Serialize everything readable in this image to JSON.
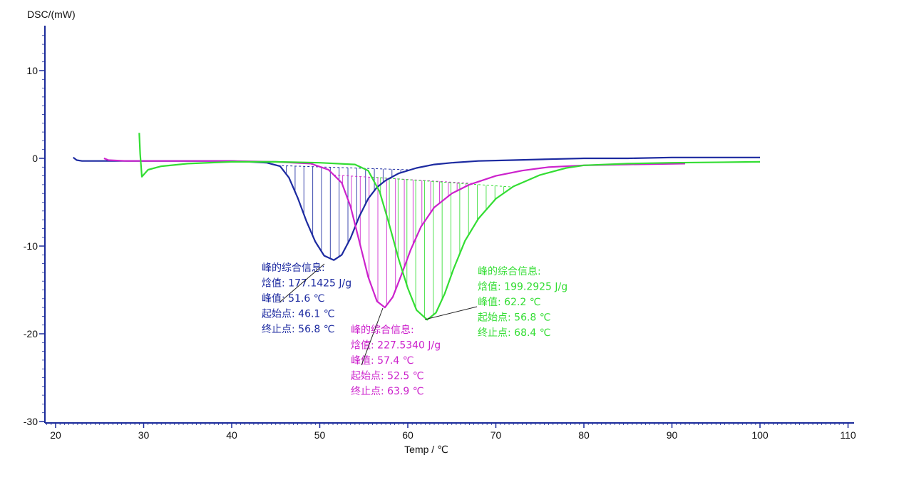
{
  "chart_data": {
    "type": "line",
    "ylabel": "DSC/(mW)",
    "xlabel": "Temp / ℃",
    "xlim": [
      19,
      110
    ],
    "ylim": [
      -30,
      15
    ],
    "xticks": [
      20,
      30,
      40,
      50,
      60,
      70,
      80,
      90,
      100,
      110
    ],
    "yticks": [
      10,
      0,
      -10,
      -20,
      -30
    ],
    "grid": false,
    "series": [
      {
        "color": "#1c2aa0",
        "x": [
          22,
          22.4,
          23,
          25,
          30,
          35,
          40,
          44,
          45.5,
          46.5,
          47.5,
          48.5,
          49.5,
          50.5,
          51.6,
          52.5,
          53.5,
          54.5,
          55.5,
          56.5,
          57.5,
          59,
          61,
          63,
          65,
          68,
          72,
          76,
          80,
          85,
          90,
          95,
          100
        ],
        "y": [
          0.1,
          -0.2,
          -0.3,
          -0.3,
          -0.3,
          -0.3,
          -0.3,
          -0.5,
          -0.9,
          -2.2,
          -4.5,
          -7.2,
          -9.5,
          -11.1,
          -11.6,
          -11.0,
          -9.1,
          -6.6,
          -4.6,
          -3.3,
          -2.5,
          -1.7,
          -1.1,
          -0.7,
          -0.5,
          -0.3,
          -0.2,
          -0.1,
          0.0,
          0.0,
          0.1,
          0.1,
          0.1
        ],
        "peak_info": {
          "title": "峰的综合信息:",
          "enthalpy_label": "焓值:",
          "enthalpy": "177.1425 J/g",
          "peak_label": "峰值:",
          "peak": "51.6 ℃",
          "onset_label": "起始点:",
          "onset": "46.1 ℃",
          "end_label": "终止点:",
          "end": "56.8 ℃"
        }
      },
      {
        "color": "#cc22cc",
        "x": [
          25.5,
          26,
          28,
          30,
          35,
          40,
          45,
          49,
          51,
          52.5,
          53.5,
          54.5,
          55.5,
          56.5,
          57.4,
          58.3,
          59.3,
          60.3,
          61.5,
          63,
          65,
          67,
          70,
          73,
          76,
          80,
          85,
          91.5
        ],
        "y": [
          0.0,
          -0.2,
          -0.3,
          -0.3,
          -0.3,
          -0.3,
          -0.4,
          -0.6,
          -1.3,
          -2.8,
          -5.5,
          -9.5,
          -13.5,
          -16.3,
          -17.0,
          -15.8,
          -13.2,
          -10.5,
          -7.8,
          -5.6,
          -4.0,
          -3.0,
          -2.0,
          -1.4,
          -1.0,
          -0.8,
          -0.7,
          -0.6
        ],
        "peak_info": {
          "title": "峰的综合信息:",
          "enthalpy_label": "焓值:",
          "enthalpy": "227.5340 J/g",
          "peak_label": "峰值:",
          "peak": "57.4 ℃",
          "onset_label": "起始点:",
          "onset": "52.5 ℃",
          "end_label": "终止点:",
          "end": "63.9 ℃"
        }
      },
      {
        "color": "#33dd33",
        "x": [
          29.5,
          29.6,
          29.8,
          30.5,
          32,
          35,
          40,
          45,
          50,
          54,
          55.5,
          56.8,
          57.8,
          59,
          60,
          61,
          62.2,
          63.2,
          64.2,
          65.2,
          66.5,
          68,
          70,
          72,
          75,
          78,
          80,
          85,
          90,
          100
        ],
        "y": [
          2.9,
          0.5,
          -2.1,
          -1.3,
          -0.9,
          -0.6,
          -0.4,
          -0.4,
          -0.5,
          -0.7,
          -1.4,
          -3.8,
          -7.2,
          -11.6,
          -14.8,
          -17.3,
          -18.4,
          -17.6,
          -15.4,
          -12.6,
          -9.4,
          -6.9,
          -4.6,
          -3.2,
          -1.9,
          -1.1,
          -0.8,
          -0.6,
          -0.5,
          -0.4
        ],
        "peak_info": {
          "title": "峰的综合信息:",
          "enthalpy_label": "焓值:",
          "enthalpy": "199.2925 J/g",
          "peak_label": "峰值:",
          "peak": "62.2 ℃",
          "onset_label": "起始点:",
          "onset": "56.8 ℃",
          "end_label": "终止点:",
          "end": "68.4 ℃"
        }
      }
    ]
  }
}
